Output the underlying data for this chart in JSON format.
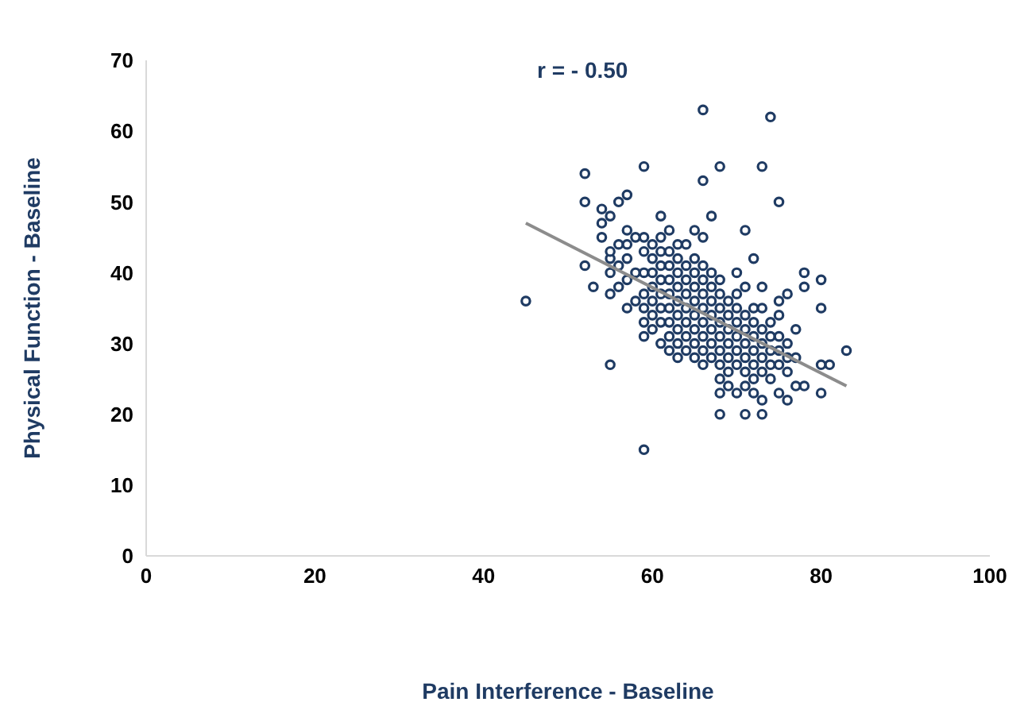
{
  "chart_data": {
    "type": "scatter",
    "xlabel": "Pain Interference - Baseline",
    "ylabel": "Physical Function - Baseline",
    "annotations": [
      "r = - 0.50"
    ],
    "xlim": [
      0,
      100
    ],
    "xticks": [
      0,
      20,
      40,
      60,
      80,
      100
    ],
    "ylim": [
      0,
      70
    ],
    "yticks": [
      0,
      10,
      20,
      30,
      40,
      50,
      60,
      70
    ],
    "grid": false,
    "legend": false,
    "series": [
      {
        "marker": "circle",
        "color": "#1f3b63",
        "x": [
          45,
          66,
          74,
          52,
          59,
          68,
          73,
          66,
          75,
          52,
          57,
          56,
          61,
          67,
          54,
          55,
          54,
          54,
          57,
          52,
          53,
          55,
          57,
          71,
          72,
          78,
          78,
          80,
          80,
          83,
          80,
          81,
          76,
          78,
          80,
          59,
          55,
          68,
          71,
          73,
          55,
          55,
          55,
          56,
          56,
          56,
          57,
          57,
          57,
          58,
          58,
          58,
          59,
          59,
          59,
          59,
          59,
          59,
          59,
          60,
          60,
          60,
          60,
          60,
          60,
          60,
          61,
          61,
          61,
          61,
          61,
          61,
          61,
          61,
          62,
          62,
          62,
          62,
          62,
          62,
          62,
          62,
          62,
          63,
          63,
          63,
          63,
          63,
          63,
          63,
          63,
          63,
          64,
          64,
          64,
          64,
          64,
          64,
          64,
          64,
          65,
          65,
          65,
          65,
          65,
          65,
          65,
          65,
          65,
          66,
          66,
          66,
          66,
          66,
          66,
          66,
          66,
          66,
          67,
          67,
          67,
          67,
          67,
          67,
          67,
          68,
          68,
          68,
          68,
          68,
          68,
          68,
          68,
          68,
          69,
          69,
          69,
          69,
          69,
          69,
          69,
          70,
          70,
          70,
          70,
          70,
          70,
          70,
          70,
          71,
          71,
          71,
          71,
          71,
          71,
          71,
          72,
          72,
          72,
          72,
          72,
          72,
          72,
          73,
          73,
          73,
          73,
          73,
          73,
          73,
          74,
          74,
          74,
          74,
          74,
          75,
          75,
          75,
          75,
          75,
          75,
          76,
          76,
          76,
          76,
          77,
          77,
          77
        ],
        "values": [
          36,
          63,
          62,
          54,
          55,
          55,
          55,
          53,
          50,
          50,
          51,
          50,
          48,
          48,
          49,
          48,
          47,
          45,
          46,
          41,
          38,
          37,
          35,
          46,
          42,
          40,
          38,
          35,
          39,
          29,
          23,
          27,
          22,
          24,
          27,
          15,
          27,
          20,
          20,
          20,
          40,
          42,
          43,
          38,
          41,
          44,
          39,
          42,
          44,
          36,
          40,
          45,
          31,
          33,
          35,
          37,
          40,
          43,
          45,
          32,
          34,
          36,
          38,
          40,
          42,
          44,
          30,
          33,
          35,
          37,
          39,
          41,
          43,
          45,
          29,
          31,
          33,
          35,
          37,
          39,
          41,
          43,
          46,
          28,
          30,
          32,
          34,
          36,
          38,
          40,
          42,
          44,
          29,
          31,
          33,
          35,
          37,
          39,
          41,
          44,
          28,
          30,
          32,
          34,
          36,
          38,
          40,
          42,
          46,
          27,
          29,
          31,
          33,
          35,
          37,
          39,
          41,
          45,
          28,
          30,
          32,
          34,
          36,
          38,
          40,
          23,
          25,
          27,
          29,
          31,
          33,
          35,
          37,
          39,
          24,
          26,
          28,
          30,
          32,
          34,
          36,
          23,
          27,
          29,
          31,
          33,
          35,
          37,
          40,
          24,
          26,
          28,
          30,
          32,
          34,
          38,
          23,
          25,
          27,
          29,
          31,
          33,
          35,
          22,
          26,
          28,
          30,
          32,
          35,
          38,
          25,
          27,
          29,
          31,
          33,
          23,
          27,
          29,
          31,
          34,
          36,
          26,
          28,
          30,
          37,
          24,
          28,
          32
        ]
      },
      {
        "type": "line",
        "marker": "none",
        "color": "#8c8c8c",
        "x": [
          45,
          83
        ],
        "values": [
          47,
          24
        ]
      }
    ]
  }
}
